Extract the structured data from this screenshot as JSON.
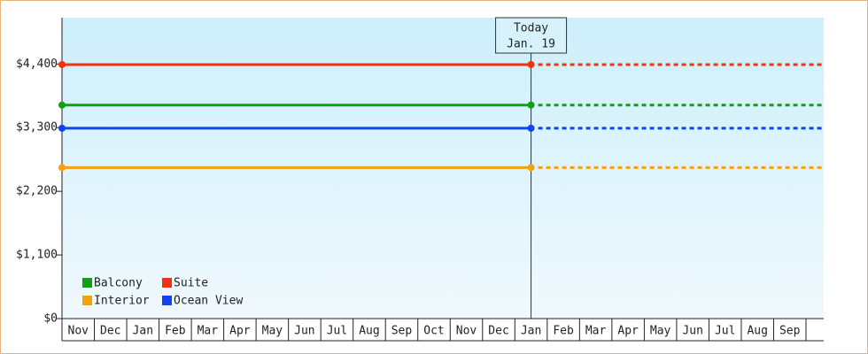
{
  "chart_data": {
    "type": "line",
    "categories": [
      "Nov",
      "Dec",
      "Jan",
      "Feb",
      "Mar",
      "Apr",
      "May",
      "Jun",
      "Jul",
      "Aug",
      "Sep",
      "Oct",
      "Nov",
      "Dec",
      "Jan",
      "Feb",
      "Mar",
      "Apr",
      "May",
      "Jun",
      "Jul",
      "Aug",
      "Sep"
    ],
    "today": {
      "title": "Today",
      "date": "Jan. 19",
      "index": 14
    },
    "series": [
      {
        "name": "Balcony",
        "color": "#11a011",
        "value": 3690
      },
      {
        "name": "Suite",
        "color": "#ee3311",
        "value": 4390
      },
      {
        "name": "Interior",
        "color": "#f5a011",
        "value": 2610
      },
      {
        "name": "Ocean View",
        "color": "#1144ee",
        "value": 3290
      }
    ],
    "ylim": [
      0,
      5200
    ],
    "yticks": [
      {
        "value": 0,
        "label": "$0"
      },
      {
        "value": 1100,
        "label": "$1,100"
      },
      {
        "value": 2200,
        "label": "$2,200"
      },
      {
        "value": 3300,
        "label": "$3,300"
      },
      {
        "value": 4400,
        "label": "$4,400"
      }
    ]
  }
}
